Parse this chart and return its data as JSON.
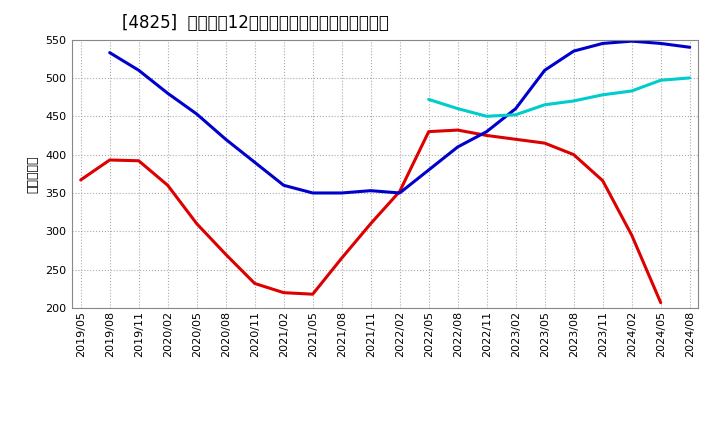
{
  "title": "[4825]  経常利益12か月移動合計の標準偏差の推移",
  "ylabel": "（百万円）",
  "ylim": [
    200,
    550
  ],
  "yticks": [
    200,
    250,
    300,
    350,
    400,
    450,
    500,
    550
  ],
  "background_color": "#ffffff",
  "grid_color": "#aaaaaa",
  "series": {
    "3年": {
      "color": "#dd0000",
      "x": [
        "2019/05",
        "2019/08",
        "2019/11",
        "2020/02",
        "2020/05",
        "2020/08",
        "2020/11",
        "2021/02",
        "2021/05",
        "2021/08",
        "2021/11",
        "2022/02",
        "2022/05",
        "2022/08",
        "2022/11",
        "2023/02",
        "2023/05",
        "2023/08",
        "2023/11",
        "2024/02",
        "2024/05"
      ],
      "y": [
        367,
        393,
        392,
        360,
        310,
        270,
        232,
        220,
        218,
        265,
        310,
        352,
        430,
        432,
        425,
        420,
        415,
        400,
        366,
        295,
        207
      ]
    },
    "5年": {
      "color": "#0000cc",
      "x": [
        "2019/08",
        "2019/11",
        "2020/02",
        "2020/05",
        "2020/08",
        "2020/11",
        "2021/02",
        "2021/05",
        "2021/08",
        "2021/11",
        "2022/02",
        "2022/05",
        "2022/08",
        "2022/11",
        "2023/02",
        "2023/05",
        "2023/08",
        "2023/11",
        "2024/02",
        "2024/05",
        "2024/08"
      ],
      "y": [
        533,
        510,
        480,
        453,
        420,
        390,
        360,
        350,
        350,
        353,
        350,
        380,
        410,
        430,
        460,
        510,
        535,
        545,
        548,
        545,
        540
      ]
    },
    "7年": {
      "color": "#00cccc",
      "x": [
        "2022/05",
        "2022/08",
        "2022/11",
        "2023/02",
        "2023/05",
        "2023/08",
        "2023/11",
        "2024/02",
        "2024/05",
        "2024/08"
      ],
      "y": [
        472,
        460,
        450,
        452,
        465,
        470,
        478,
        483,
        497,
        500
      ]
    },
    "10年": {
      "color": "#006600",
      "x": [],
      "y": []
    }
  },
  "xtick_labels": [
    "2019/05",
    "2019/08",
    "2019/11",
    "2020/02",
    "2020/05",
    "2020/08",
    "2020/11",
    "2021/02",
    "2021/05",
    "2021/08",
    "2021/11",
    "2022/02",
    "2022/05",
    "2022/08",
    "2022/11",
    "2023/02",
    "2023/05",
    "2023/08",
    "2023/11",
    "2024/02",
    "2024/05",
    "2024/08"
  ],
  "title_fontsize": 12,
  "legend_fontsize": 10,
  "tick_fontsize": 8,
  "ylabel_fontsize": 9
}
